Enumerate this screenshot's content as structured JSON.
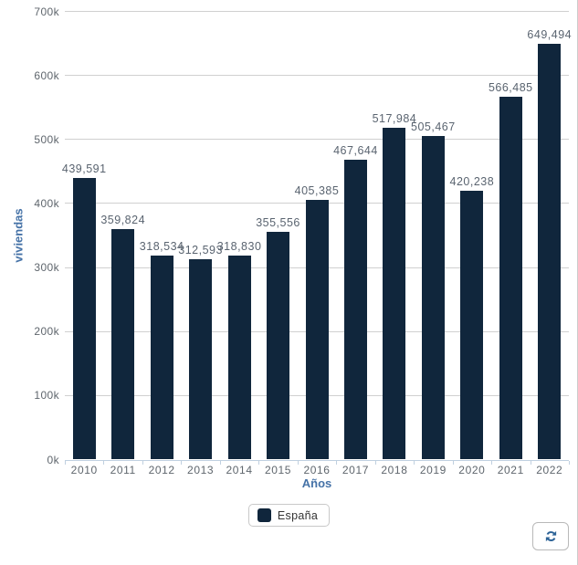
{
  "chart_data": {
    "type": "bar",
    "title": "",
    "xlabel": "Años",
    "ylabel": "viviendas",
    "categories": [
      "2010",
      "2011",
      "2012",
      "2013",
      "2014",
      "2015",
      "2016",
      "2017",
      "2018",
      "2019",
      "2020",
      "2021",
      "2022"
    ],
    "series": [
      {
        "name": "España",
        "color": "#10263c",
        "values": [
          439591,
          359824,
          318534,
          312593,
          318830,
          355556,
          405385,
          467644,
          517984,
          505467,
          420238,
          566485,
          649494
        ]
      }
    ],
    "data_labels": [
      "439,591",
      "359,824",
      "318,534",
      "312,593",
      "318,830",
      "355,556",
      "405,385",
      "467,644",
      "517,984",
      "505,467",
      "420,238",
      "566,485",
      "649,494"
    ],
    "ylim": [
      0,
      700000
    ],
    "ytick_step": 100000,
    "ytick_labels": [
      "0k",
      "100k",
      "200k",
      "300k",
      "400k",
      "500k",
      "600k",
      "700k"
    ],
    "grid": true,
    "legend_position": "bottom-center"
  },
  "legend": {
    "items": [
      {
        "label": "España",
        "color": "#10263c"
      }
    ]
  },
  "controls": {
    "refresh_icon": "refresh-icon"
  },
  "colors": {
    "bar": "#10263c",
    "axis_title": "#4572a7",
    "tick_label": "#5f666d",
    "data_label": "#5a6470",
    "gridline": "#d0d0d0",
    "axis_line": "#c0d0e0",
    "refresh_icon": "#2d6397"
  }
}
